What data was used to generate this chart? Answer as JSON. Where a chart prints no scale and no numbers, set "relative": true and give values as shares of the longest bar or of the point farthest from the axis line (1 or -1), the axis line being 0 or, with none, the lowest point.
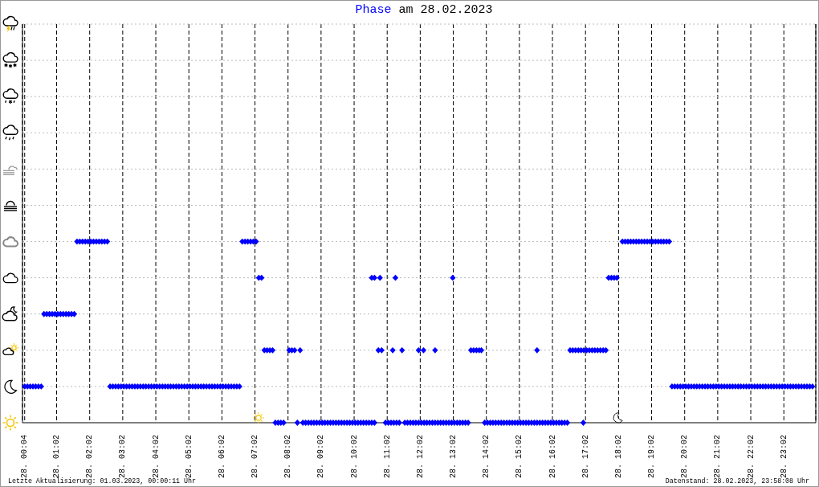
{
  "chart_data": {
    "type": "scatter",
    "title": "am 28.02.2023",
    "relative": true,
    "marker": "diamond",
    "grid": true,
    "legend": "top",
    "xlim": [
      "2023-02-28T00:00",
      "2023-03-01T00:00"
    ],
    "xticks": [
      {
        "value": "2023-02-28T00:04",
        "label": "28. 00:04"
      },
      {
        "value": "2023-02-28T01:02",
        "label": "28. 01:02"
      },
      {
        "value": "2023-02-28T02:02",
        "label": "28. 02:02"
      },
      {
        "value": "2023-02-28T03:02",
        "label": "28. 03:02"
      },
      {
        "value": "2023-02-28T04:02",
        "label": "28. 04:02"
      },
      {
        "value": "2023-02-28T05:02",
        "label": "28. 05:02"
      },
      {
        "value": "2023-02-28T06:02",
        "label": "28. 06:02"
      },
      {
        "value": "2023-02-28T07:02",
        "label": "28. 07:02"
      },
      {
        "value": "2023-02-28T08:02",
        "label": "28. 08:02"
      },
      {
        "value": "2023-02-28T09:02",
        "label": "28. 09:02"
      },
      {
        "value": "2023-02-28T10:02",
        "label": "28. 10:02"
      },
      {
        "value": "2023-02-28T11:02",
        "label": "28. 11:02"
      },
      {
        "value": "2023-02-28T12:02",
        "label": "28. 12:02"
      },
      {
        "value": "2023-02-28T13:02",
        "label": "28. 13:02"
      },
      {
        "value": "2023-02-28T14:02",
        "label": "28. 14:02"
      },
      {
        "value": "2023-02-28T15:02",
        "label": "28. 15:02"
      },
      {
        "value": "2023-02-28T16:02",
        "label": "28. 16:02"
      },
      {
        "value": "2023-02-28T17:02",
        "label": "28. 17:02"
      },
      {
        "value": "2023-02-28T18:02",
        "label": "28. 18:02"
      },
      {
        "value": "2023-02-28T19:02",
        "label": "28. 19:02"
      },
      {
        "value": "2023-02-28T20:02",
        "label": "28. 20:02"
      },
      {
        "value": "2023-02-28T21:02",
        "label": "28. 21:02"
      },
      {
        "value": "2023-02-28T22:02",
        "label": "28. 22:02"
      },
      {
        "value": "2023-02-28T23:02",
        "label": "28. 23:02"
      }
    ],
    "x": [
      "2023-02-28T00:04",
      "2023-02-28T00:09",
      "2023-02-28T00:14",
      "2023-02-28T00:19",
      "2023-02-28T00:24",
      "2023-02-28T00:29",
      "2023-02-28T00:34",
      "2023-02-28T00:39",
      "2023-02-28T00:44",
      "2023-02-28T00:49",
      "2023-02-28T00:54",
      "2023-02-28T00:59",
      "2023-02-28T01:04",
      "2023-02-28T01:09",
      "2023-02-28T01:14",
      "2023-02-28T01:19",
      "2023-02-28T01:24",
      "2023-02-28T01:29",
      "2023-02-28T01:34",
      "2023-02-28T01:39",
      "2023-02-28T01:44",
      "2023-02-28T01:49",
      "2023-02-28T01:54",
      "2023-02-28T01:59",
      "2023-02-28T02:04",
      "2023-02-28T02:09",
      "2023-02-28T02:14",
      "2023-02-28T02:19",
      "2023-02-28T02:24",
      "2023-02-28T02:29",
      "2023-02-28T02:34",
      "2023-02-28T02:39",
      "2023-02-28T02:44",
      "2023-02-28T02:49",
      "2023-02-28T02:54",
      "2023-02-28T02:59",
      "2023-02-28T03:04",
      "2023-02-28T03:09",
      "2023-02-28T03:14",
      "2023-02-28T03:19",
      "2023-02-28T03:24",
      "2023-02-28T03:29",
      "2023-02-28T03:34",
      "2023-02-28T03:39",
      "2023-02-28T03:44",
      "2023-02-28T03:49",
      "2023-02-28T03:54",
      "2023-02-28T03:59",
      "2023-02-28T04:04",
      "2023-02-28T04:09",
      "2023-02-28T04:14",
      "2023-02-28T04:19",
      "2023-02-28T04:24",
      "2023-02-28T04:29",
      "2023-02-28T04:34",
      "2023-02-28T04:39",
      "2023-02-28T04:44",
      "2023-02-28T04:49",
      "2023-02-28T04:54",
      "2023-02-28T04:59",
      "2023-02-28T05:04",
      "2023-02-28T05:09",
      "2023-02-28T05:14",
      "2023-02-28T05:19",
      "2023-02-28T05:24",
      "2023-02-28T05:29",
      "2023-02-28T05:34",
      "2023-02-28T05:39",
      "2023-02-28T05:44",
      "2023-02-28T05:49",
      "2023-02-28T05:54",
      "2023-02-28T05:59",
      "2023-02-28T06:04",
      "2023-02-28T06:09",
      "2023-02-28T06:14",
      "2023-02-28T06:19",
      "2023-02-28T06:24",
      "2023-02-28T06:29",
      "2023-02-28T06:34",
      "2023-02-28T06:39",
      "2023-02-28T06:44",
      "2023-02-28T06:49",
      "2023-02-28T06:54",
      "2023-02-28T06:59",
      "2023-02-28T07:04",
      "2023-02-28T07:09",
      "2023-02-28T07:14",
      "2023-02-28T07:19",
      "2023-02-28T07:24",
      "2023-02-28T07:29",
      "2023-02-28T07:34",
      "2023-02-28T07:39",
      "2023-02-28T07:44",
      "2023-02-28T07:49",
      "2023-02-28T07:54",
      "2023-02-28T08:04",
      "2023-02-28T08:09",
      "2023-02-28T08:14",
      "2023-02-28T08:19",
      "2023-02-28T08:24",
      "2023-02-28T08:29",
      "2023-02-28T08:34",
      "2023-02-28T08:39",
      "2023-02-28T08:44",
      "2023-02-28T08:49",
      "2023-02-28T08:54",
      "2023-02-28T08:59",
      "2023-02-28T09:04",
      "2023-02-28T09:09",
      "2023-02-28T09:14",
      "2023-02-28T09:19",
      "2023-02-28T09:24",
      "2023-02-28T09:29",
      "2023-02-28T09:34",
      "2023-02-28T09:39",
      "2023-02-28T09:44",
      "2023-02-28T09:49",
      "2023-02-28T09:54",
      "2023-02-28T09:59",
      "2023-02-28T10:04",
      "2023-02-28T10:09",
      "2023-02-28T10:14",
      "2023-02-28T10:19",
      "2023-02-28T10:24",
      "2023-02-28T10:29",
      "2023-02-28T10:34",
      "2023-02-28T10:39",
      "2023-02-28T10:34",
      "2023-02-28T10:39",
      "2023-02-28T10:49",
      "2023-02-28T10:46",
      "2023-02-28T10:52",
      "2023-02-28T10:59",
      "2023-02-28T11:04",
      "2023-02-28T11:09",
      "2023-02-28T11:14",
      "2023-02-28T11:19",
      "2023-02-28T11:24",
      "2023-02-28T11:12",
      "2023-02-28T11:17",
      "2023-02-28T11:29",
      "2023-02-28T11:34",
      "2023-02-28T11:39",
      "2023-02-28T11:44",
      "2023-02-28T11:49",
      "2023-02-28T11:54",
      "2023-02-28T11:59",
      "2023-02-28T12:04",
      "2023-02-28T12:09",
      "2023-02-28T12:14",
      "2023-02-28T12:19",
      "2023-02-28T12:24",
      "2023-02-28T12:29",
      "2023-02-28T12:34",
      "2023-02-28T12:39",
      "2023-02-28T12:44",
      "2023-02-28T12:49",
      "2023-02-28T12:54",
      "2023-02-28T12:59",
      "2023-02-28T13:04",
      "2023-02-28T13:09",
      "2023-02-28T13:14",
      "2023-02-28T13:19",
      "2023-02-28T13:24",
      "2023-02-28T13:29",
      "2023-02-28T11:59",
      "2023-02-28T12:08",
      "2023-02-28T12:29",
      "2023-02-28T13:01",
      "2023-02-28T13:34",
      "2023-02-28T13:39",
      "2023-02-28T13:44",
      "2023-02-28T13:49",
      "2023-02-28T13:53",
      "2023-02-28T13:59",
      "2023-02-28T14:04",
      "2023-02-28T14:09",
      "2023-02-28T14:14",
      "2023-02-28T14:19",
      "2023-02-28T14:24",
      "2023-02-28T14:29",
      "2023-02-28T14:34",
      "2023-02-28T14:39",
      "2023-02-28T14:44",
      "2023-02-28T14:49",
      "2023-02-28T14:54",
      "2023-02-28T14:59",
      "2023-02-28T15:04",
      "2023-02-28T15:09",
      "2023-02-28T15:14",
      "2023-02-28T15:19",
      "2023-02-28T15:24",
      "2023-02-28T15:29",
      "2023-02-28T15:34",
      "2023-02-28T15:39",
      "2023-02-28T15:44",
      "2023-02-28T15:49",
      "2023-02-28T15:54",
      "2023-02-28T15:59",
      "2023-02-28T16:04",
      "2023-02-28T16:09",
      "2023-02-28T16:14",
      "2023-02-28T16:19",
      "2023-02-28T16:24",
      "2023-02-28T16:29",
      "2023-02-28T15:34",
      "2023-02-28T16:34",
      "2023-02-28T16:39",
      "2023-02-28T16:44",
      "2023-02-28T16:49",
      "2023-02-28T16:54",
      "2023-02-28T16:59",
      "2023-02-28T17:04",
      "2023-02-28T17:09",
      "2023-02-28T17:14",
      "2023-02-28T17:19",
      "2023-02-28T17:24",
      "2023-02-28T17:29",
      "2023-02-28T17:34",
      "2023-02-28T17:39",
      "2023-02-28T16:58",
      "2023-02-28T17:44",
      "2023-02-28T17:49",
      "2023-02-28T17:54",
      "2023-02-28T17:59",
      "2023-02-28T18:09",
      "2023-02-28T18:14",
      "2023-02-28T18:19",
      "2023-02-28T18:24",
      "2023-02-28T18:29",
      "2023-02-28T18:34",
      "2023-02-28T18:39",
      "2023-02-28T18:44",
      "2023-02-28T18:49",
      "2023-02-28T18:54",
      "2023-02-28T18:59",
      "2023-02-28T19:04",
      "2023-02-28T19:09",
      "2023-02-28T19:14",
      "2023-02-28T19:19",
      "2023-02-28T19:24",
      "2023-02-28T19:29",
      "2023-02-28T19:34",
      "2023-02-28T19:39",
      "2023-02-28T19:44",
      "2023-02-28T19:49",
      "2023-02-28T19:54",
      "2023-02-28T19:59",
      "2023-02-28T20:04",
      "2023-02-28T20:09",
      "2023-02-28T20:14",
      "2023-02-28T20:19",
      "2023-02-28T20:24",
      "2023-02-28T20:29",
      "2023-02-28T20:34",
      "2023-02-28T20:39",
      "2023-02-28T20:44",
      "2023-02-28T20:49",
      "2023-02-28T20:54",
      "2023-02-28T20:59",
      "2023-02-28T21:04",
      "2023-02-28T21:09",
      "2023-02-28T21:14",
      "2023-02-28T21:19",
      "2023-02-28T21:24",
      "2023-02-28T21:29",
      "2023-02-28T21:34",
      "2023-02-28T21:39",
      "2023-02-28T21:44",
      "2023-02-28T21:49",
      "2023-02-28T21:54",
      "2023-02-28T21:59",
      "2023-02-28T22:04",
      "2023-02-28T22:09",
      "2023-02-28T22:14",
      "2023-02-28T22:19",
      "2023-02-28T22:24",
      "2023-02-28T22:29",
      "2023-02-28T22:34",
      "2023-02-28T22:39",
      "2023-02-28T22:44",
      "2023-02-28T22:49",
      "2023-02-28T22:54",
      "2023-02-28T22:59",
      "2023-02-28T23:04",
      "2023-02-28T23:09",
      "2023-02-28T23:14",
      "2023-02-28T23:19",
      "2023-02-28T23:24",
      "2023-02-28T23:29",
      "2023-02-28T23:34",
      "2023-02-28T23:39",
      "2023-02-28T23:44",
      "2023-02-28T23:49",
      "2023-02-28T23:54"
    ],
    "series": [
      {
        "name": "Phase",
        "color": "#0000ff",
        "values": [
          0.2,
          0.2,
          0.2,
          0.2,
          0.2,
          0.2,
          0.2,
          0.6,
          0.6,
          0.6,
          0.6,
          0.6,
          0.6,
          0.6,
          0.6,
          0.6,
          0.6,
          0.6,
          0.6,
          1,
          1,
          1,
          1,
          1,
          1,
          1,
          1,
          1,
          1,
          1,
          1,
          0.2,
          0.2,
          0.2,
          0.2,
          0.2,
          0.2,
          0.2,
          0.2,
          0.2,
          0.2,
          0.2,
          0.2,
          0.2,
          0.2,
          0.2,
          0.2,
          0.2,
          0.2,
          0.2,
          0.2,
          0.2,
          0.2,
          0.2,
          0.2,
          0.2,
          0.2,
          0.2,
          0.2,
          0.2,
          0.2,
          0.2,
          0.2,
          0.2,
          0.2,
          0.2,
          0.2,
          0.2,
          0.2,
          0.2,
          0.2,
          0.2,
          0.2,
          0.2,
          0.2,
          0.2,
          0.2,
          0.2,
          0.2,
          1,
          1,
          1,
          1,
          1,
          1,
          0.8,
          0.8,
          0.4,
          0.4,
          0.4,
          0.4,
          0,
          0,
          0,
          0,
          0.4,
          0.4,
          0.4,
          0,
          0.4,
          0,
          0,
          0,
          0,
          0,
          0,
          0,
          0,
          0,
          0,
          0,
          0,
          0,
          0,
          0,
          0,
          0,
          0,
          0,
          0,
          0,
          0,
          0,
          0,
          0,
          0,
          0,
          0.8,
          0.8,
          0.8,
          0.4,
          0.4,
          0,
          0,
          0,
          0,
          0,
          0,
          0.4,
          0.8,
          0.4,
          0,
          0,
          0,
          0,
          0,
          0,
          0,
          0,
          0,
          0,
          0,
          0,
          0,
          0,
          0,
          0,
          0,
          0,
          0,
          0,
          0,
          0,
          0,
          0,
          0.4,
          0.4,
          0.4,
          0.8,
          0.4,
          0.4,
          0.4,
          0.4,
          0.4,
          0,
          0,
          0,
          0,
          0,
          0,
          0,
          0,
          0,
          0,
          0,
          0,
          0,
          0,
          0,
          0,
          0,
          0,
          0,
          0,
          0,
          0,
          0,
          0,
          0,
          0,
          0,
          0,
          0,
          0,
          0,
          0.4,
          0.4,
          0.4,
          0.4,
          0.4,
          0.4,
          0.4,
          0.4,
          0.4,
          0.4,
          0.4,
          0.4,
          0.4,
          0.4,
          0.4,
          0,
          0.8,
          0.8,
          0.8,
          0.8,
          1,
          1,
          1,
          1,
          1,
          1,
          1,
          1,
          1,
          1,
          1,
          1,
          1,
          1,
          1,
          1,
          1,
          1,
          0.2,
          0.2,
          0.2,
          0.2,
          0.2,
          0.2,
          0.2,
          0.2,
          0.2,
          0.2,
          0.2,
          0.2,
          0.2,
          0.2,
          0.2,
          0.2,
          0.2,
          0.2,
          0.2,
          0.2,
          0.2,
          0.2,
          0.2,
          0.2,
          0.2,
          0.2,
          0.2,
          0.2,
          0.2,
          0.2,
          0.2,
          0.2,
          0.2,
          0.2,
          0.2,
          0.2,
          0.2,
          0.2,
          0.2,
          0.2,
          0.2,
          0.2,
          0.2,
          0.2,
          0.2,
          0.2,
          0.2,
          0.2,
          0.2,
          0.2,
          0.2,
          0.2
        ]
      }
    ],
    "annotations": [
      "Letzte Aktualisierung: 01.03.2023, 00:00:11 Uhr",
      "Datenstand: 28.02.2023, 23:58:08 Uhr"
    ]
  }
}
